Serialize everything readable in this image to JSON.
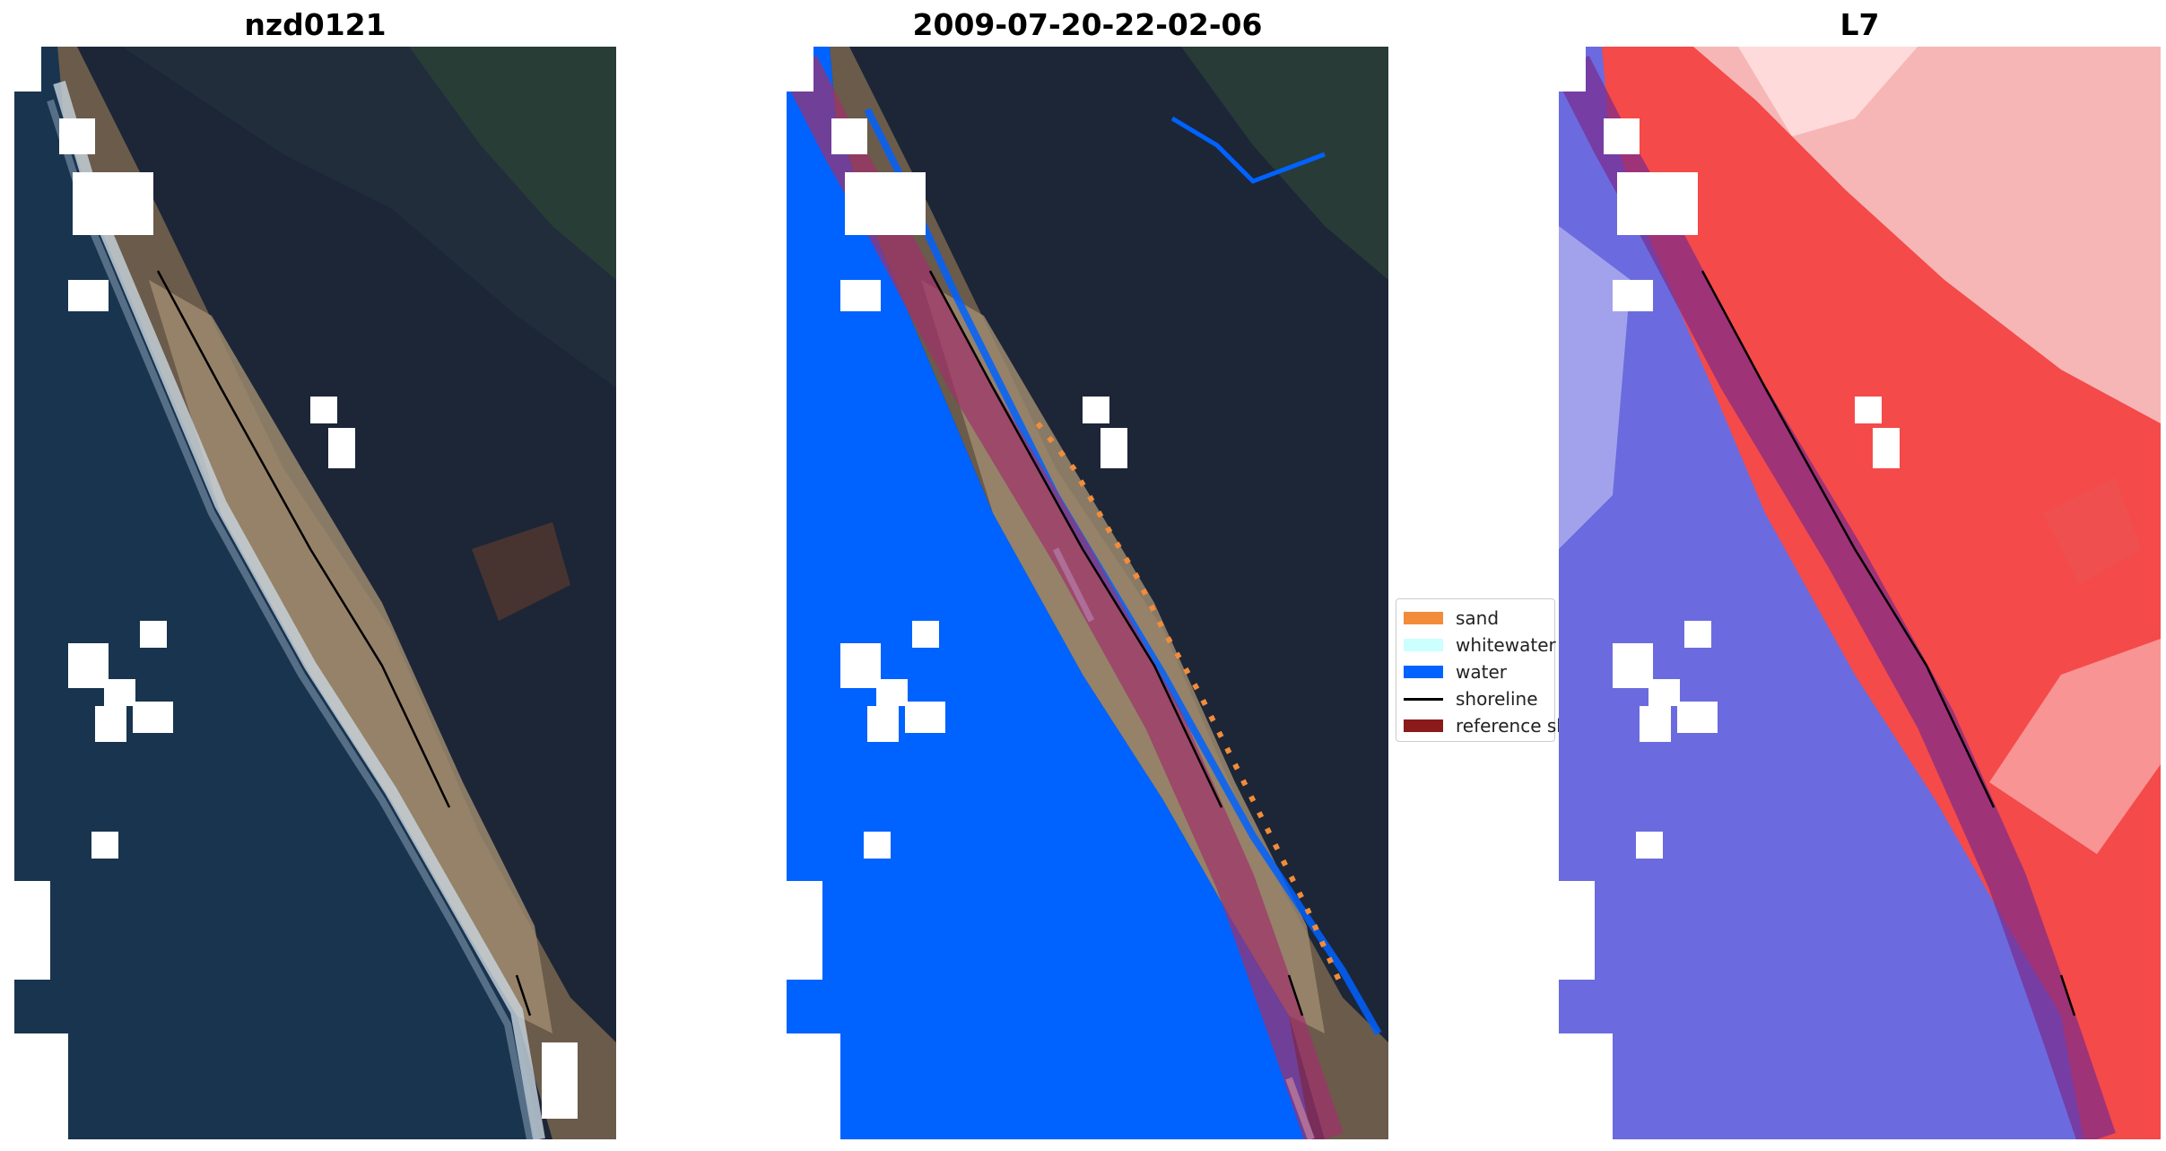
{
  "panels": [
    {
      "title": "nzd0121",
      "kind": "rgb"
    },
    {
      "title": "2009-07-20-22-02-06",
      "kind": "classified"
    },
    {
      "title": "L7",
      "kind": "index"
    }
  ],
  "legend": {
    "items": [
      {
        "label": "sand",
        "color": "#f28c3a",
        "type": "patch"
      },
      {
        "label": "whitewater",
        "color": "#ccffff",
        "type": "patch"
      },
      {
        "label": "water",
        "color": "#0062ff",
        "type": "patch"
      },
      {
        "label": "shoreline",
        "color": "#000000",
        "type": "line"
      },
      {
        "label": "reference shoreline buffer",
        "color": "#8b1a1a",
        "type": "patch"
      }
    ]
  },
  "colors": {
    "ocean_rgb": "#19344f",
    "land_rgb": "#1c2637",
    "beach_rgb": "#9c8a6f",
    "water_class": "#0062ff",
    "sand_class": "#f28c3a",
    "buffer": "#a0306b",
    "land_index": "#f44a4a",
    "water_index": "#5b5be0"
  }
}
